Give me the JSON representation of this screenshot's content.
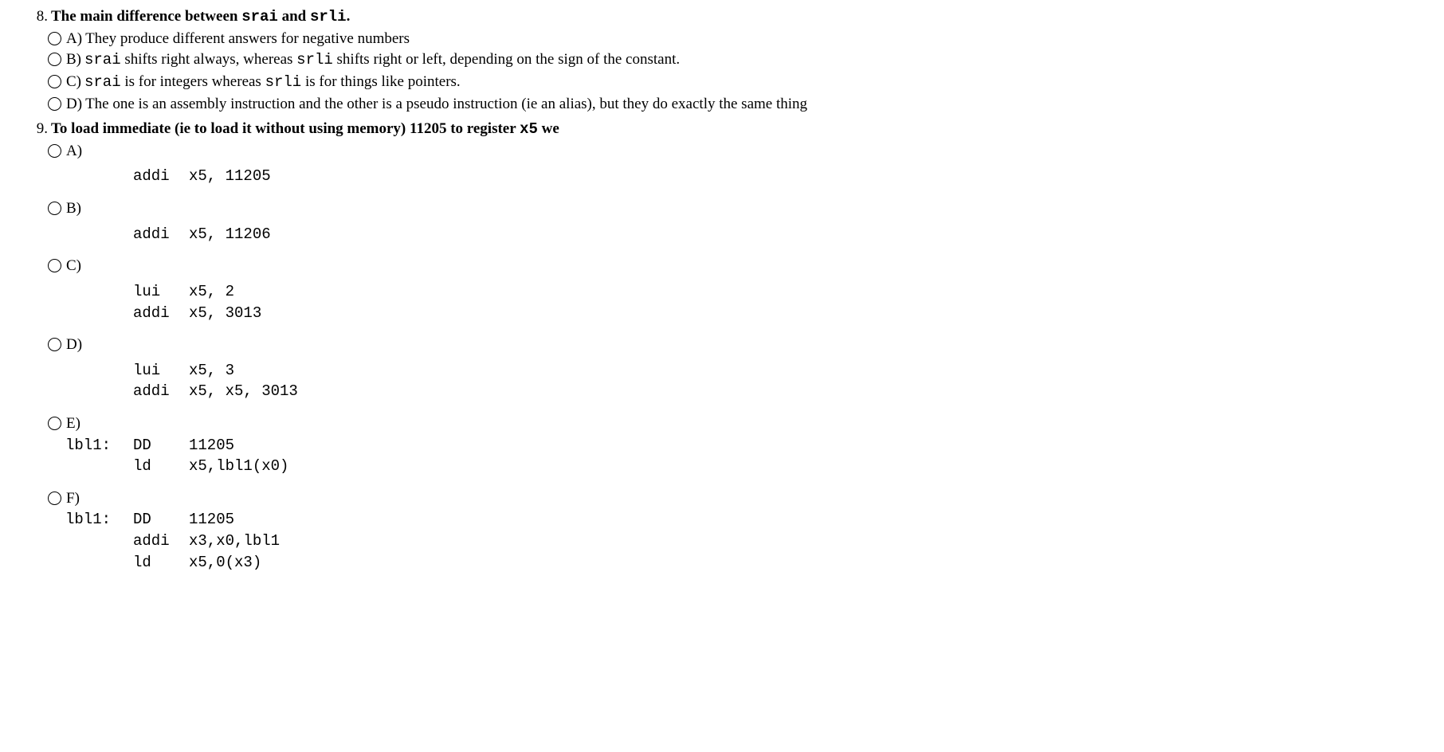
{
  "q8": {
    "number": "8.",
    "title_pre": "The main difference between ",
    "code1": "srai",
    "mid": " and ",
    "code2": "srli",
    "title_post": ".",
    "options": {
      "A": {
        "label": "A)",
        "text": "They produce different answers for negative numbers"
      },
      "B": {
        "label": "B)",
        "pre": "",
        "c1": "srai",
        "m1": " shifts right always, whereas ",
        "c2": "srli",
        "m2": " shifts right or left, depending on the sign of the constant."
      },
      "C": {
        "label": "C)",
        "c1": "srai",
        "m1": " is for integers whereas ",
        "c2": "srli",
        "m2": " is for things like pointers."
      },
      "D": {
        "label": "D)",
        "text": "The one is an assembly instruction and the other is a pseudo instruction (ie an alias), but they do exactly the same thing"
      }
    }
  },
  "q9": {
    "number": "9.",
    "title_pre": "To load immediate (ie to load it without using memory) 11205 to register ",
    "code1": "x5",
    "title_post": " we",
    "opt_labels": {
      "A": "A)",
      "B": "B)",
      "C": "C)",
      "D": "D)",
      "E": "E)",
      "F": "F)"
    },
    "code": {
      "A": [
        {
          "lbl": "",
          "op": "addi",
          "args": "x5, 11205"
        }
      ],
      "B": [
        {
          "lbl": "",
          "op": "addi",
          "args": "x5, 11206"
        }
      ],
      "C": [
        {
          "lbl": "",
          "op": "lui",
          "args": "x5, 2"
        },
        {
          "lbl": "",
          "op": "addi",
          "args": "x5, 3013"
        }
      ],
      "D": [
        {
          "lbl": "",
          "op": "lui",
          "args": "x5, 3"
        },
        {
          "lbl": "",
          "op": "addi",
          "args": "x5, x5, 3013"
        }
      ],
      "E": [
        {
          "lbl": "lbl1:",
          "op": "DD",
          "args": "11205"
        },
        {
          "lbl": "",
          "op": "ld",
          "args": "x5,lbl1(x0)"
        }
      ],
      "F": [
        {
          "lbl": "lbl1:",
          "op": "DD",
          "args": "11205"
        },
        {
          "lbl": "",
          "op": "addi",
          "args": "x3,x0,lbl1"
        },
        {
          "lbl": "",
          "op": "ld",
          "args": "x5,0(x3)"
        }
      ]
    }
  }
}
